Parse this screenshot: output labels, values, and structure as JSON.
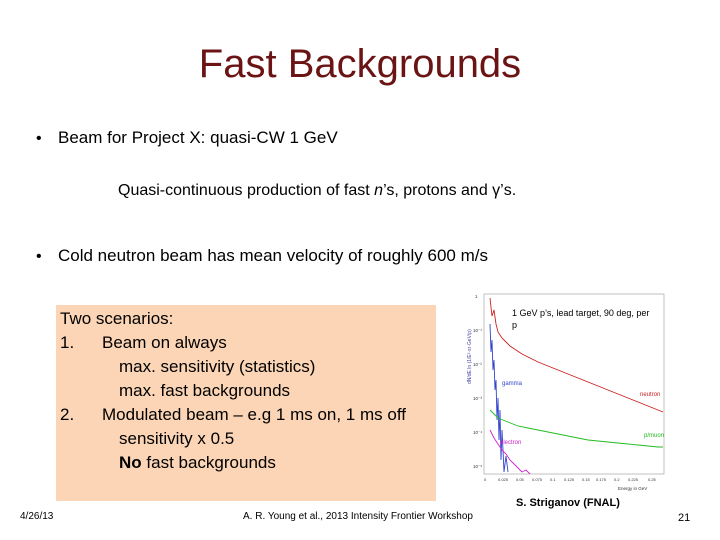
{
  "slide": {
    "title": "Fast Backgrounds",
    "bullet1": "Beam for Project X: quasi-CW 1 GeV",
    "sub_line_prefix": "Quasi-continuous production of fast ",
    "sub_line_n": "n",
    "sub_line_suffix": "’s, protons and γ’s.",
    "bullet2": "Cold neutron beam has mean velocity of roughly 600 m/s",
    "bullet_glyph": "•"
  },
  "scenarios": {
    "heading": "Two scenarios:",
    "item1_num": "1.",
    "item1_label": "Beam on always",
    "item1_line2": "max. sensitivity (statistics)",
    "item1_line3": "max. fast backgrounds",
    "item2_num": "2.",
    "item2_label": "Modulated beam – e.g 1 ms on, 1 ms off",
    "item2_line2": "sensitivity x 0.5",
    "item2_line3_bold": "No",
    "item2_line3_rest": " fast backgrounds"
  },
  "figure": {
    "caption": "1 GeV p’s, lead target, 90 deg, per p",
    "ylabel": "dN/dE ln (1/E²·sr·GeV/p)",
    "xlabel": "Energy in GeV",
    "series_labels": {
      "gamma": "gamma",
      "neutron": "neutron",
      "electron": "electron",
      "pmuon": "p/muon"
    },
    "y_ticks": [
      "1",
      "10⁻¹",
      "10⁻²",
      "10⁻³",
      "10⁻⁴",
      "10⁻⁵"
    ],
    "x_ticks": [
      "0",
      "0.025",
      "0.05",
      "0.075",
      "0.1",
      "0.125",
      "0.15",
      "0.175",
      "0.2",
      "0.225",
      "0.25"
    ],
    "credit": "S. Striganov (FNAL)",
    "colors": {
      "gamma": "#3344cc",
      "neutron": "#cc2222",
      "electron": "#cc22cc",
      "pmuon": "#22bb22"
    }
  },
  "footer": {
    "date": "4/26/13",
    "center": "A. R. Young et al., 2013 Intensity Frontier Workshop",
    "page": "21"
  }
}
